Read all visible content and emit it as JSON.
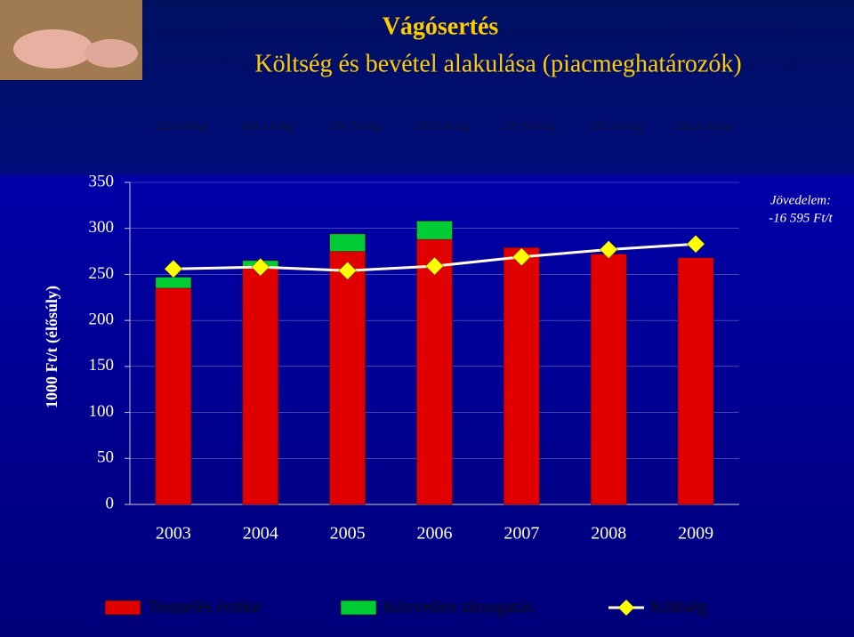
{
  "chart_data": {
    "type": "bar",
    "title": [
      "Vágósertés",
      "Költség és bevétel alakulása (piacmeghatározók)"
    ],
    "price_labels": [
      "232,8 Ft/kg",
      "264,2 Ft/kg",
      "274,7 Ft/kg",
      "287,5 Ft/kg",
      "277,8 Ft/kg",
      "270,3 Ft/kg",
      "265,6 Ft/kg"
    ],
    "annotation": [
      "Jövedelem:",
      "-16 595 Ft/t"
    ],
    "y_label": "1000 Ft/t (élősúly)",
    "categories": [
      "2003",
      "2004",
      "2005",
      "2006",
      "2007",
      "2008",
      "2009"
    ],
    "series": [
      {
        "name": "Termelés értéke",
        "color": "#e00000",
        "type": "bar",
        "values": [
          235,
          257,
          275,
          288,
          279,
          272,
          268
        ]
      },
      {
        "name": "Közvetlen támogatás",
        "color": "#00cc33",
        "type": "bar",
        "values": [
          12,
          8,
          19,
          20,
          0,
          0,
          0
        ]
      },
      {
        "name": "Költség",
        "color": "#ffff00",
        "type": "line",
        "values": [
          256,
          258,
          254,
          259,
          269,
          277,
          283
        ]
      }
    ],
    "ylim": [
      0,
      350
    ],
    "yticks": [
      0,
      50,
      100,
      150,
      200,
      250,
      300,
      350
    ],
    "grid": true
  }
}
